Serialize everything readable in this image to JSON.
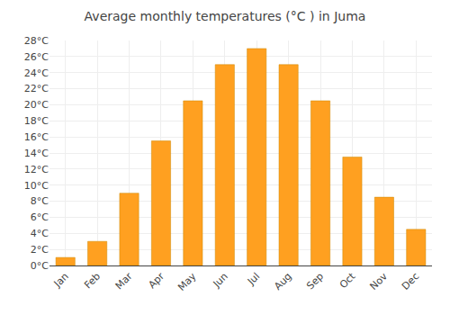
{
  "chart_data": {
    "type": "bar",
    "title": "Average monthly temperatures (°C ) in Juma",
    "categories": [
      "Jan",
      "Feb",
      "Mar",
      "Apr",
      "May",
      "Jun",
      "Jul",
      "Aug",
      "Sep",
      "Oct",
      "Nov",
      "Dec"
    ],
    "values": [
      1.0,
      3.0,
      9.0,
      15.5,
      20.5,
      25.0,
      27.0,
      25.0,
      20.5,
      13.5,
      8.5,
      4.5
    ],
    "color": "#FFA020",
    "ylim": [
      0,
      28
    ],
    "yticks": [
      {
        "value": 0,
        "label": "0°C"
      },
      {
        "value": 2,
        "label": "2°C"
      },
      {
        "value": 4,
        "label": "4°C"
      },
      {
        "value": 6,
        "label": "6°C"
      },
      {
        "value": 8,
        "label": "8°C"
      },
      {
        "value": 10,
        "label": "10°C"
      },
      {
        "value": 12,
        "label": "12°C"
      },
      {
        "value": 14,
        "label": "14°C"
      },
      {
        "value": 16,
        "label": "16°C"
      },
      {
        "value": 18,
        "label": "18°C"
      },
      {
        "value": 20,
        "label": "20°C"
      },
      {
        "value": 22,
        "label": "22°C"
      },
      {
        "value": 24,
        "label": "24°C"
      },
      {
        "value": 26,
        "label": "26°C"
      },
      {
        "value": 28,
        "label": "28°C"
      }
    ],
    "grid": true
  }
}
